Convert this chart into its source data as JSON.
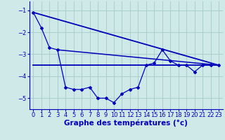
{
  "background_color": "#cfe8e8",
  "grid_color": "#aacece",
  "line_color": "#0000bb",
  "xlabel": "Graphe des températures (°c)",
  "xlabel_fontsize": 7.5,
  "xlim": [
    -0.5,
    23.5
  ],
  "ylim": [
    -5.5,
    -0.6
  ],
  "yticks": [
    -5,
    -4,
    -3,
    -2,
    -1
  ],
  "xticks": [
    0,
    1,
    2,
    3,
    4,
    5,
    6,
    7,
    8,
    9,
    10,
    11,
    12,
    13,
    14,
    15,
    16,
    17,
    18,
    19,
    20,
    21,
    22,
    23
  ],
  "tick_fontsize": 6,
  "series1_x": [
    0,
    1,
    2,
    3,
    4,
    5,
    6,
    7,
    8,
    9,
    10,
    11,
    12,
    13,
    14,
    15,
    16,
    17,
    18,
    19,
    20,
    21,
    22,
    23
  ],
  "series1_y": [
    -1.1,
    -1.8,
    -2.7,
    -2.8,
    -4.5,
    -4.6,
    -4.6,
    -4.5,
    -5.0,
    -5.0,
    -5.2,
    -4.8,
    -4.6,
    -4.5,
    -3.5,
    -3.4,
    -2.8,
    -3.3,
    -3.5,
    -3.5,
    -3.8,
    -3.5,
    -3.5,
    -3.5
  ],
  "series2_x": [
    0,
    23
  ],
  "series2_y": [
    -3.5,
    -3.5
  ],
  "series3_x": [
    0,
    23
  ],
  "series3_y": [
    -1.1,
    -3.5
  ],
  "series4_x": [
    3,
    23
  ],
  "series4_y": [
    -2.8,
    -3.5
  ]
}
